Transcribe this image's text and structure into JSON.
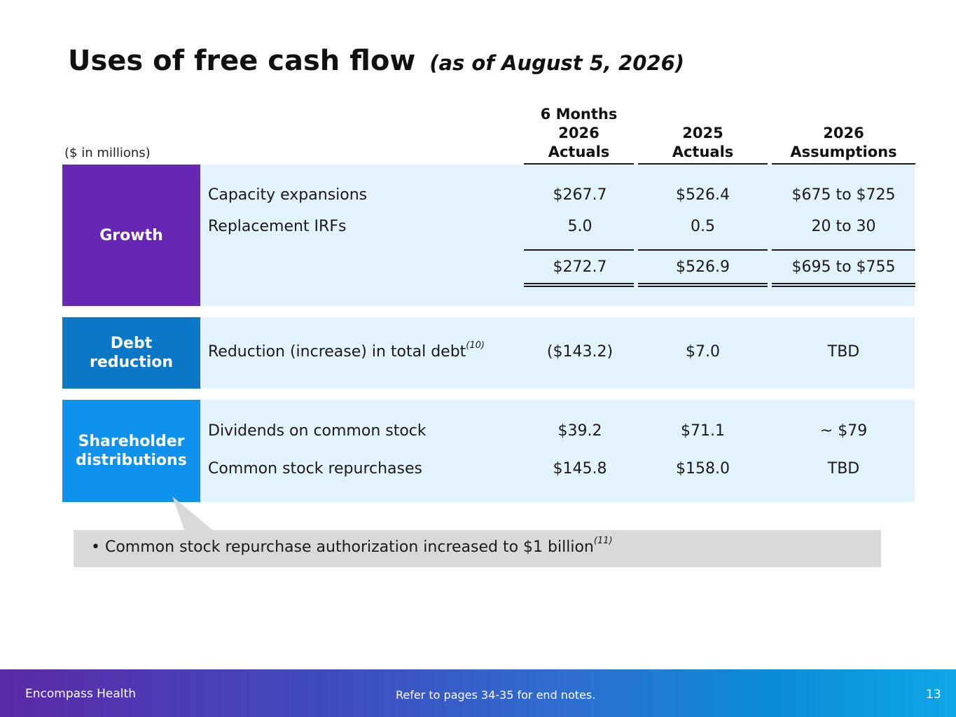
{
  "title": "Uses of free cash flow",
  "subtitle": "(as of August 5, 2026)",
  "units": "($ in millions)",
  "columns": {
    "c1": [
      "6 Months",
      "2026",
      "Actuals"
    ],
    "c2": [
      "2025",
      "Actuals"
    ],
    "c3": [
      "2026",
      "Assumptions"
    ]
  },
  "sections": {
    "growth": {
      "label": "Growth",
      "color": "#6826b4",
      "rows": [
        {
          "item": "Capacity expansions",
          "c1": "$267.7",
          "c2": "$526.4",
          "c3": "$675 to $725"
        },
        {
          "item": "Replacement IRFs",
          "c1": "5.0",
          "c2": "0.5",
          "c3": "20 to 30"
        }
      ],
      "total": {
        "c1": "$272.7",
        "c2": "$526.9",
        "c3": "$695 to $755"
      }
    },
    "debt": {
      "label_lines": [
        "Debt",
        "reduction"
      ],
      "color": "#0a78c7",
      "row": {
        "item": "Reduction (increase) in total debt",
        "note": "(10)",
        "c1": "($143.2)",
        "c2": "$7.0",
        "c3": "TBD"
      }
    },
    "shareholder": {
      "label_lines": [
        "Shareholder",
        "distributions"
      ],
      "color": "#0f92ee",
      "rows": [
        {
          "item": "Dividends on common stock",
          "c1": "$39.2",
          "c2": "$71.1",
          "c3": "~ $79"
        },
        {
          "item": "Common stock repurchases",
          "c1": "$145.8",
          "c2": "$158.0",
          "c3": "TBD"
        }
      ]
    }
  },
  "callout": {
    "bullet": "•",
    "text": "Common stock repurchase authorization increased to $1 billion",
    "note": "(11)"
  },
  "footer": {
    "company": "Encompass Health",
    "note": "Refer to pages 34-35 for end notes.",
    "page": "13"
  }
}
